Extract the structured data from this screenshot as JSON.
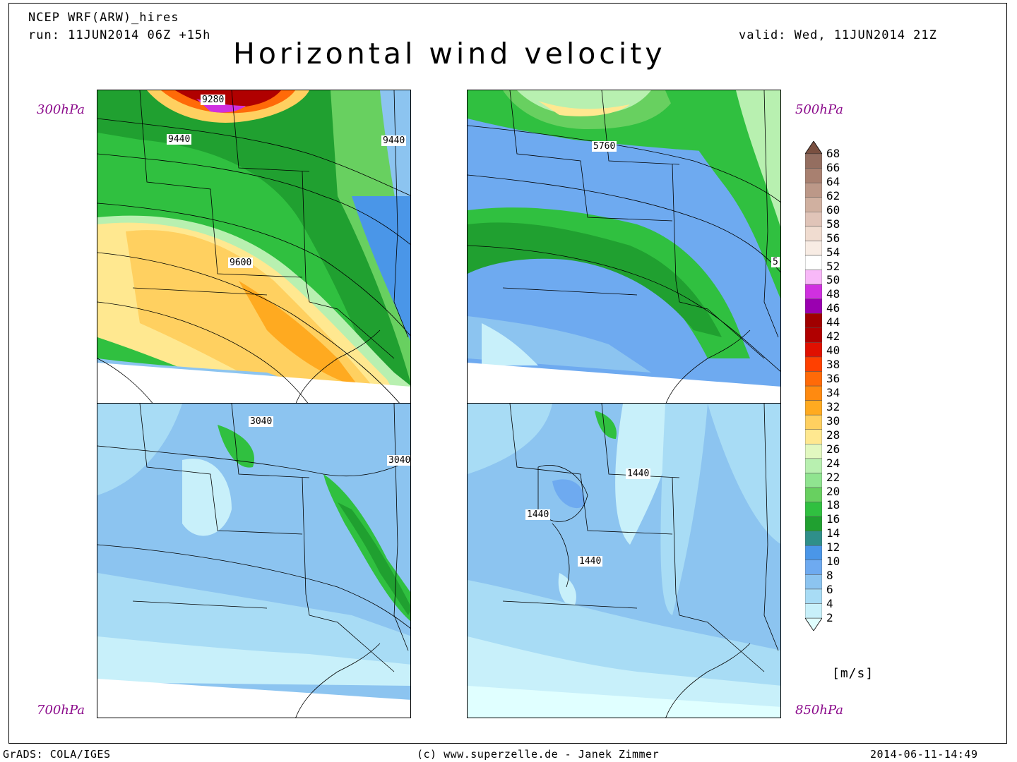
{
  "header": {
    "model": "NCEP WRF(ARW)_hires",
    "run": "run: 11JUN2014 06Z +15h",
    "valid": "valid: Wed, 11JUN2014 21Z",
    "title": "Horizontal wind velocity"
  },
  "panels": [
    {
      "level_label": "300hPa",
      "contour_labels": [
        "9280",
        "9440",
        "9440",
        "9600"
      ],
      "dominant_speed_ms": 22
    },
    {
      "level_label": "500hPa",
      "contour_labels": [
        "5760",
        "5"
      ],
      "dominant_speed_ms": 14
    },
    {
      "level_label": "700hPa",
      "contour_labels": [
        "3040",
        "3040"
      ],
      "dominant_speed_ms": 10
    },
    {
      "level_label": "850hPa",
      "contour_labels": [
        "1440",
        "1440",
        "1440"
      ],
      "dominant_speed_ms": 8
    }
  ],
  "colorbar": {
    "values": [
      2,
      4,
      6,
      8,
      10,
      12,
      14,
      16,
      18,
      20,
      22,
      24,
      26,
      28,
      30,
      32,
      34,
      36,
      38,
      40,
      42,
      44,
      46,
      48,
      50,
      52,
      54,
      56,
      58,
      60,
      62,
      64,
      66,
      68
    ],
    "labels": [
      "68",
      "66",
      "64",
      "62",
      "60",
      "58",
      "56",
      "54",
      "52",
      "50",
      "48",
      "46",
      "44",
      "42",
      "40",
      "38",
      "36",
      "34",
      "32",
      "30",
      "28",
      "26",
      "24",
      "22",
      "20",
      "18",
      "16",
      "14",
      "12",
      "10",
      "8",
      "6",
      "4",
      "2"
    ],
    "colors": [
      "#e0ffff",
      "#c8f0fa",
      "#a8dcf5",
      "#8cc4f0",
      "#6eaaf0",
      "#4a96e8",
      "#2f8f8a",
      "#20a030",
      "#30c040",
      "#68d060",
      "#90e490",
      "#b8f0b0",
      "#e2f8c0",
      "#ffe890",
      "#ffd060",
      "#ffaa20",
      "#ff8a10",
      "#ff6a08",
      "#ff4000",
      "#e01000",
      "#b00000",
      "#a00000",
      "#9a00b0",
      "#d030e0",
      "#f8b8f8",
      "#ffffff",
      "#f8ece4",
      "#f0dcd0",
      "#e0c4b8",
      "#d0b0a0",
      "#bc9888",
      "#a88070",
      "#946e60",
      "#7a5040"
    ],
    "units": "[m/s]"
  },
  "footer": {
    "left": "GrADS: COLA/IGES",
    "center": "(c) www.superzelle.de - Janek Zimmer",
    "right": "2014-06-11-14:49"
  }
}
